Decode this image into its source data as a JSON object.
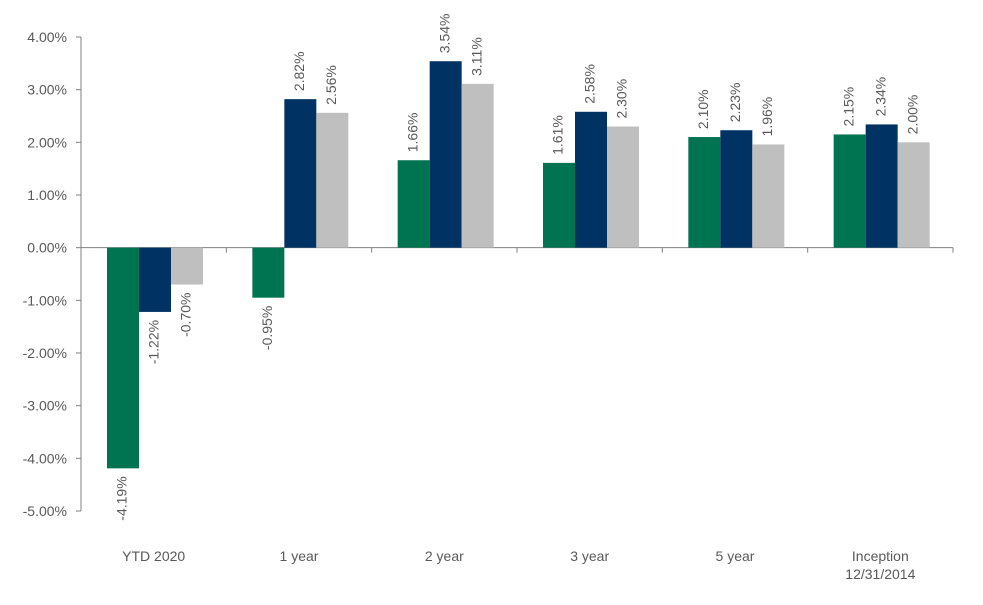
{
  "chart_data": {
    "type": "bar",
    "categories": [
      [
        "YTD 2020"
      ],
      [
        "1 year"
      ],
      [
        "2 year"
      ],
      [
        "3 year"
      ],
      [
        "5 year"
      ],
      [
        "Inception",
        "12/31/2014"
      ]
    ],
    "series": [
      {
        "color": "#007350",
        "values": [
          -4.19,
          -0.95,
          1.66,
          1.61,
          2.1,
          2.15
        ],
        "labels": [
          "-4.19%",
          "-0.95%",
          "1.66%",
          "1.61%",
          "2.10%",
          "2.15%"
        ]
      },
      {
        "color": "#003264",
        "values": [
          -1.22,
          2.82,
          3.54,
          2.58,
          2.23,
          2.34
        ],
        "labels": [
          "-1.22%",
          "2.82%",
          "3.54%",
          "2.58%",
          "2.23%",
          "2.34%"
        ]
      },
      {
        "color": "#BFBFBF",
        "values": [
          -0.7,
          2.56,
          3.11,
          2.3,
          1.96,
          2.0
        ],
        "labels": [
          "-0.70%",
          "2.56%",
          "3.11%",
          "2.30%",
          "1.96%",
          "2.00%"
        ]
      }
    ],
    "y_ticks": [
      "4.00%",
      "3.00%",
      "2.00%",
      "1.00%",
      "0.00%",
      "-1.00%",
      "-2.00%",
      "-3.00%",
      "-4.00%",
      "-5.00%"
    ],
    "y_tick_values": [
      4,
      3,
      2,
      1,
      0,
      -1,
      -2,
      -3,
      -4,
      -5
    ],
    "ylim": [
      -5,
      4
    ],
    "title": "",
    "xlabel": "",
    "ylabel": "",
    "grid": false,
    "legend": "none"
  }
}
